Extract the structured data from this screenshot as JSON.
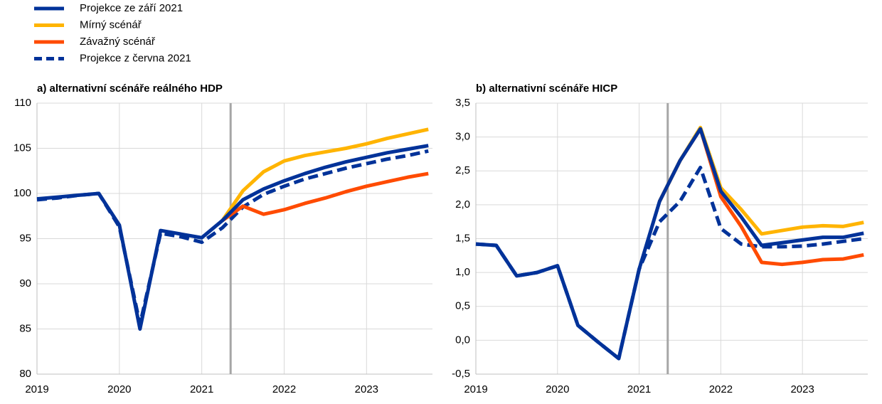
{
  "chart_data": [
    {
      "type": "line",
      "title": "a) alternativní scénáře reálného HDP",
      "x": [
        2019.0,
        2019.25,
        2019.5,
        2019.75,
        2020.0,
        2020.25,
        2020.5,
        2020.75,
        2021.0,
        2021.25,
        2021.5,
        2021.75,
        2022.0,
        2022.25,
        2022.5,
        2022.75,
        2023.0,
        2023.25,
        2023.5,
        2023.75
      ],
      "series": [
        {
          "name": "Projekce ze září 2021",
          "color": "#003299",
          "dash": false,
          "values": [
            99.4,
            99.6,
            99.8,
            100.0,
            96.5,
            85.0,
            95.9,
            95.5,
            95.1,
            97.0,
            99.3,
            100.5,
            101.4,
            102.2,
            102.9,
            103.5,
            104.0,
            104.5,
            104.9,
            105.3
          ]
        },
        {
          "name": "Mírný scénář",
          "color": "#ffb400",
          "dash": false,
          "values": [
            null,
            null,
            null,
            null,
            null,
            null,
            null,
            null,
            null,
            97.0,
            100.3,
            102.4,
            103.6,
            104.2,
            104.6,
            105.0,
            105.5,
            106.1,
            106.6,
            107.1
          ]
        },
        {
          "name": "Závažný scénář",
          "color": "#ff4b00",
          "dash": false,
          "values": [
            null,
            null,
            null,
            null,
            null,
            null,
            null,
            null,
            null,
            97.0,
            98.6,
            97.7,
            98.2,
            98.9,
            99.5,
            100.2,
            100.8,
            101.3,
            101.8,
            102.2
          ]
        },
        {
          "name": "Projekce z června 2021",
          "color": "#003299",
          "dash": true,
          "values": [
            99.3,
            99.5,
            99.8,
            100.0,
            96.3,
            85.5,
            95.6,
            95.2,
            94.6,
            96.2,
            98.5,
            99.9,
            100.8,
            101.6,
            102.2,
            102.8,
            103.3,
            103.8,
            104.2,
            104.7
          ]
        }
      ],
      "xlim": [
        2019,
        2023.8
      ],
      "xticks": [
        2019,
        2020,
        2021,
        2022,
        2023
      ],
      "ylim": [
        80,
        110
      ],
      "yticks": [
        80,
        85,
        90,
        95,
        100,
        105,
        110
      ],
      "grid": true,
      "vline": 2021.35
    },
    {
      "type": "line",
      "title": "b) alternativní scénáře HICP",
      "x": [
        2019.0,
        2019.25,
        2019.5,
        2019.75,
        2020.0,
        2020.25,
        2020.5,
        2020.75,
        2021.0,
        2021.25,
        2021.5,
        2021.75,
        2022.0,
        2022.25,
        2022.5,
        2022.75,
        2023.0,
        2023.25,
        2023.5,
        2023.75
      ],
      "series": [
        {
          "color": "#003299",
          "dash": false,
          "values": [
            1.42,
            1.4,
            0.95,
            1.0,
            1.1,
            0.22,
            -0.03,
            -0.27,
            1.05,
            2.05,
            2.65,
            3.12,
            2.2,
            1.82,
            1.4,
            1.44,
            1.48,
            1.52,
            1.52,
            1.58
          ]
        },
        {
          "color": "#ffb400",
          "dash": false,
          "values": [
            null,
            null,
            null,
            null,
            null,
            null,
            null,
            null,
            null,
            2.05,
            2.65,
            3.14,
            2.25,
            1.93,
            1.57,
            1.62,
            1.67,
            1.69,
            1.68,
            1.74
          ]
        },
        {
          "color": "#ff4b00",
          "dash": false,
          "values": [
            null,
            null,
            null,
            null,
            null,
            null,
            null,
            null,
            null,
            2.05,
            2.65,
            3.12,
            2.12,
            1.68,
            1.15,
            1.12,
            1.15,
            1.19,
            1.2,
            1.26
          ]
        },
        {
          "color": "#003299",
          "dash": true,
          "values": [
            1.42,
            1.4,
            0.95,
            1.0,
            1.1,
            0.22,
            -0.03,
            -0.27,
            1.05,
            1.75,
            2.05,
            2.55,
            1.65,
            1.42,
            1.38,
            1.38,
            1.39,
            1.42,
            1.46,
            1.5
          ]
        }
      ],
      "xlim": [
        2019,
        2023.8
      ],
      "xticks": [
        2019,
        2020,
        2021,
        2022,
        2023
      ],
      "ylim": [
        -0.5,
        3.5
      ],
      "yticks": [
        {
          "value": -0.5,
          "label": "-0,5"
        },
        {
          "value": 0,
          "label": "0,0"
        },
        {
          "value": 0.5,
          "label": "0,5"
        },
        {
          "value": 1,
          "label": "1,0"
        },
        {
          "value": 1.5,
          "label": "1,5"
        },
        {
          "value": 2,
          "label": "2,0"
        },
        {
          "value": 2.5,
          "label": "2,5"
        },
        {
          "value": 3,
          "label": "3,0"
        },
        {
          "value": 3.5,
          "label": "3,5"
        }
      ],
      "grid": true,
      "vline": 2021.35
    }
  ]
}
